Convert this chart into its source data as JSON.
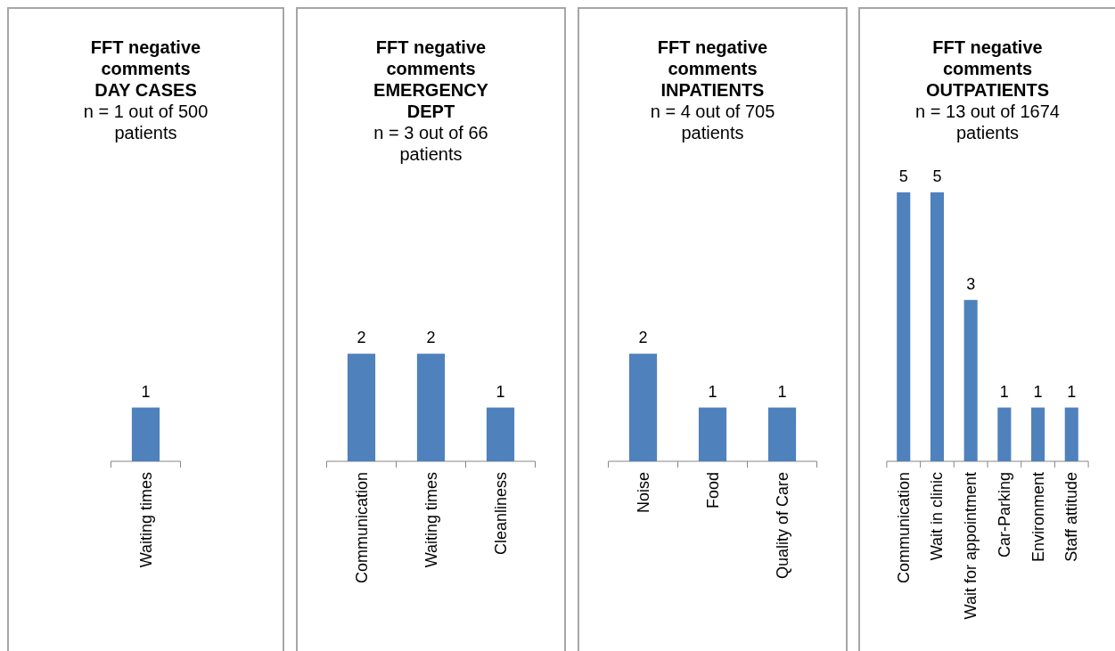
{
  "chart_data": [
    {
      "type": "bar",
      "title": "FFT negative comments DAY CASES",
      "subtitle": "n = 1 out of 500 patients",
      "categories": [
        "Waiting times"
      ],
      "values": [
        1
      ],
      "color": "#4f81bd",
      "data_labels": true
    },
    {
      "type": "bar",
      "title": "FFT negative comments EMERGENCY DEPT",
      "subtitle": "n = 3 out of 66 patients",
      "categories": [
        "Communication",
        "Waiting times",
        "Cleanliness"
      ],
      "values": [
        2,
        2,
        1
      ],
      "color": "#4f81bd",
      "data_labels": true
    },
    {
      "type": "bar",
      "title": "FFT negative comments INPATIENTS",
      "subtitle": "n = 4 out of 705 patients",
      "categories": [
        "Noise",
        "Food",
        "Quality of Care"
      ],
      "values": [
        2,
        1,
        1
      ],
      "color": "#4f81bd",
      "data_labels": true
    },
    {
      "type": "bar",
      "title": "FFT negative comments OUTPATIENTS",
      "subtitle": "n = 13 out of 1674 patients",
      "categories": [
        "Communication",
        "Wait in clinic",
        "Wait for appointment",
        "Car-Parking",
        "Environment",
        "Staff attitude"
      ],
      "values": [
        5,
        5,
        3,
        1,
        1,
        1
      ],
      "color": "#4f81bd",
      "data_labels": true
    }
  ]
}
